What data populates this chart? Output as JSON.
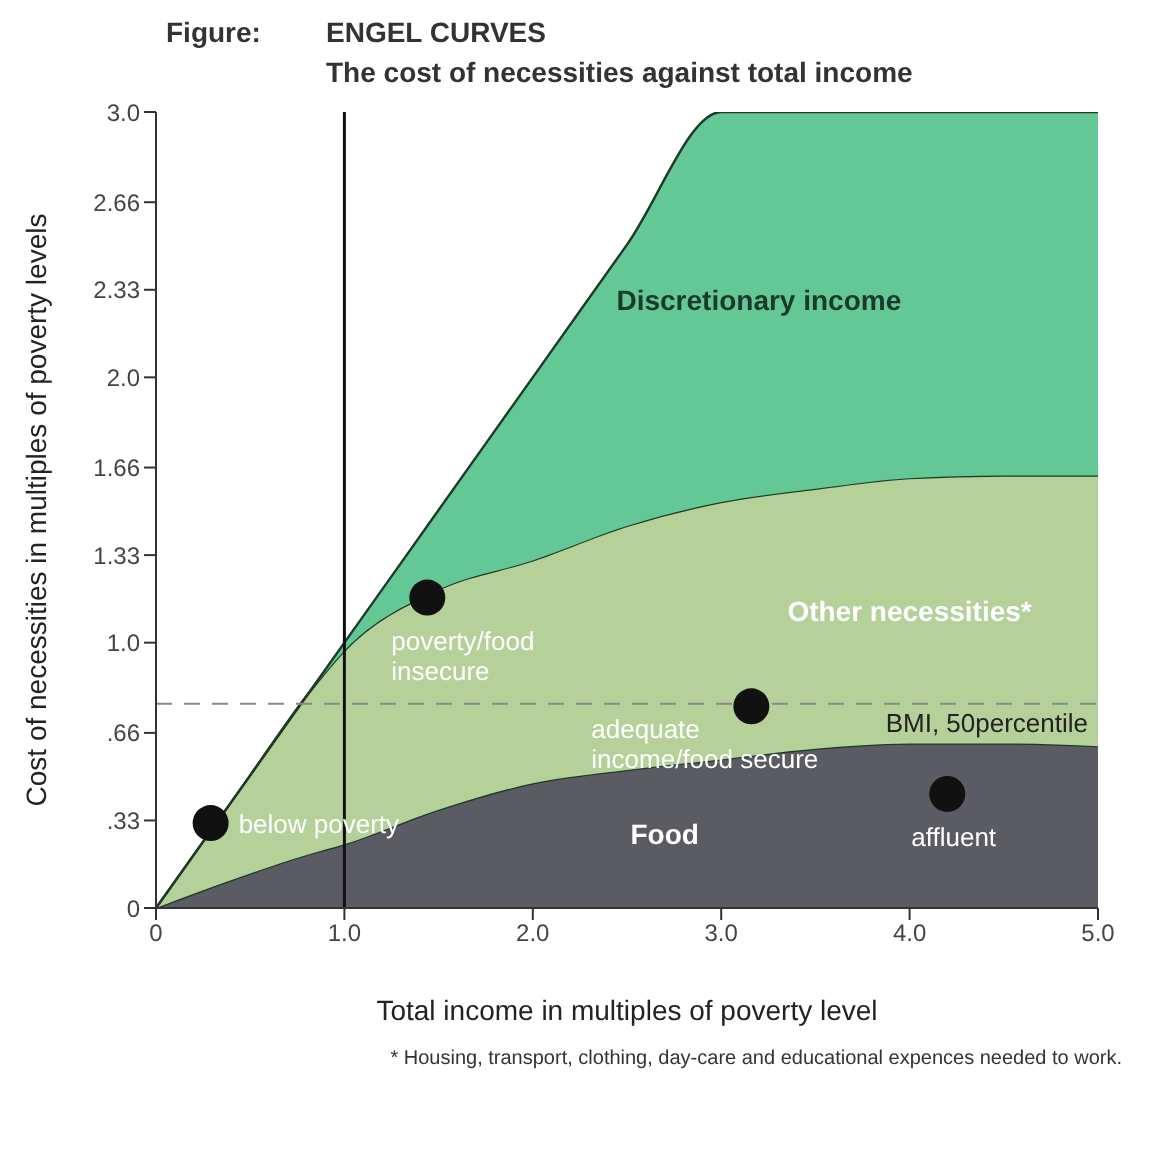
{
  "chart_data": {
    "type": "area",
    "stacked": true,
    "title": "ENGEL CURVES",
    "subtitle": "The cost of necessities against total income",
    "xlabel": "Total income in multiples of poverty level",
    "ylabel": "Cost of necessities in multiples of poverty levels",
    "x": [
      0,
      0.5,
      0.8,
      1,
      1.5,
      2,
      2.5,
      3,
      3.5,
      4,
      4.5,
      5
    ],
    "series": [
      {
        "name": "Food",
        "color": "#5b5b63",
        "values": [
          0,
          0.13,
          0.2,
          0.24,
          0.37,
          0.47,
          0.52,
          0.56,
          0.6,
          0.62,
          0.62,
          0.61
        ]
      },
      {
        "name": "Other necessities*",
        "color": "#b6d09a",
        "values": [
          0,
          0.37,
          0.6,
          0.73,
          0.83,
          0.84,
          0.92,
          0.97,
          0.98,
          1.0,
          1.01,
          1.02
        ]
      },
      {
        "name": "Discretionary income",
        "color": "#64c896",
        "values": [
          0,
          0,
          0,
          0.03,
          0.3,
          0.69,
          1.06,
          1.47,
          1.42,
          1.38,
          1.37,
          1.37
        ]
      },
      {
        "type": "scatter",
        "color": "#111111",
        "x": [
          0.29,
          1.44,
          3.16,
          4.2
        ],
        "values": [
          0.32,
          1.17,
          0.76,
          0.43
        ]
      }
    ],
    "xlim": [
      0,
      5
    ],
    "xticks": [
      0,
      {
        "value": 1,
        "label": "1.0"
      },
      {
        "value": 2,
        "label": "2.0"
      },
      {
        "value": 3,
        "label": "3.0"
      },
      {
        "value": 4,
        "label": "4.0"
      },
      {
        "value": 5,
        "label": "5.0"
      }
    ],
    "ylim": [
      0,
      3
    ],
    "yticks": [
      0,
      {
        "value": 0.33,
        "label": ".33"
      },
      {
        "value": 0.66,
        "label": ".66"
      },
      {
        "value": 1,
        "label": "1.0"
      },
      {
        "value": 1.33,
        "label": "1.33"
      },
      {
        "value": 1.66,
        "label": "1.66"
      },
      {
        "value": 2,
        "label": "2.0"
      },
      {
        "value": 2.33,
        "label": "2.33"
      },
      {
        "value": 2.66,
        "label": "2.66"
      },
      {
        "value": 3,
        "label": "3.0"
      }
    ],
    "ref_lines": [
      {
        "axis": "y",
        "value": 0.77,
        "label": "BMI, 50percentile",
        "color": "#888888",
        "line_style": "dashed"
      },
      {
        "axis": "x",
        "value": 1,
        "color": "#111111",
        "line_style": "solid"
      }
    ],
    "annotations": [
      "Figure:",
      {
        "text": "below poverty",
        "x": 0.29,
        "y": 0.32
      },
      {
        "text": "poverty/food insecure",
        "x": 1.44,
        "y": 1.17
      },
      {
        "text": "adequate income/food secure",
        "x": 3.16,
        "y": 0.76
      },
      {
        "text": "affluent",
        "x": 4.2,
        "y": 0.43
      },
      "* Housing, transport, clothing, day-care and educational expences needed to work."
    ]
  }
}
